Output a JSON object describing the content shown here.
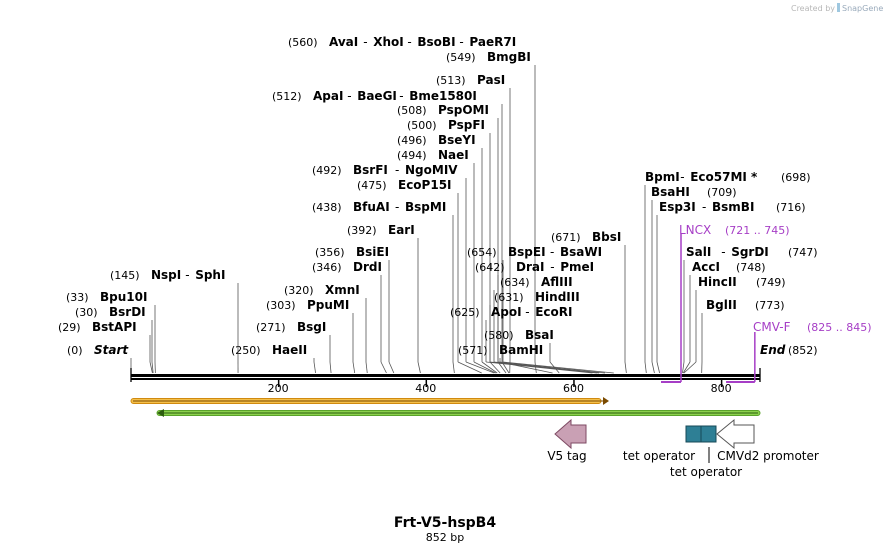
{
  "watermark": {
    "created_by": "Created by",
    "brand": "SnapGene"
  },
  "plasmid": {
    "name": "Frt-V5-hspB4",
    "length": "852 bp",
    "bp": 852
  },
  "colors": {
    "enzyme": "#000000",
    "primer": "#a63ec6",
    "v5": "#c9a0b4",
    "tet": "#2e7f95",
    "orf_yellow": "#f5c04a",
    "orf_green": "#8bd14c"
  },
  "ruler": {
    "ticks": [
      {
        "bp": 200,
        "label": "200"
      },
      {
        "bp": 400,
        "label": "400"
      },
      {
        "bp": 600,
        "label": "600"
      },
      {
        "bp": 800,
        "label": "800"
      }
    ]
  },
  "sites": [
    {
      "pos": "(560)",
      "names": [
        "AvaI",
        "XhoI",
        "BsoBI",
        "PaeR7I"
      ],
      "bp": 560,
      "lx": 543
    },
    {
      "pos": "(549)",
      "names": [
        "BmgBI"
      ],
      "bp": 549,
      "lx": 535
    },
    {
      "pos": "(513)",
      "names": [
        "PasI"
      ],
      "bp": 513,
      "lx": 510
    },
    {
      "pos": "(512)",
      "names": [
        "ApaI",
        "BaeGI",
        "Bme1580I"
      ],
      "bp": 512,
      "lx": 502
    },
    {
      "pos": "(508)",
      "names": [
        "PspOMI"
      ],
      "bp": 508,
      "lx": 498
    },
    {
      "pos": "(500)",
      "names": [
        "PspFI"
      ],
      "bp": 500,
      "lx": 490
    },
    {
      "pos": "(496)",
      "names": [
        "BseYI"
      ],
      "bp": 496,
      "lx": 482
    },
    {
      "pos": "(494)",
      "names": [
        "NaeI"
      ],
      "bp": 494,
      "lx": 474
    },
    {
      "pos": "(492)",
      "names": [
        "BsrFI",
        "NgoMIV"
      ],
      "bp": 492,
      "lx": 466
    },
    {
      "pos": "(475)",
      "names": [
        "EcoP15I"
      ],
      "bp": 475,
      "lx": 458
    },
    {
      "pos": "(438)",
      "names": [
        "BfuAI",
        "BspMI"
      ],
      "bp": 438,
      "lx": 453
    },
    {
      "pos": "(392)",
      "names": [
        "EarI"
      ],
      "bp": 392,
      "lx": 418
    },
    {
      "pos": "(356)",
      "names": [
        "BsiEI"
      ],
      "bp": 356,
      "lx": 389
    },
    {
      "pos": "(346)",
      "names": [
        "DrdI"
      ],
      "bp": 346,
      "lx": 381
    },
    {
      "pos": "(320)",
      "names": [
        "XmnI"
      ],
      "bp": 320,
      "lx": 366
    },
    {
      "pos": "(303)",
      "names": [
        "PpuMI"
      ],
      "bp": 303,
      "lx": 353
    },
    {
      "pos": "(271)",
      "names": [
        "BsgI"
      ],
      "bp": 271,
      "lx": 330
    },
    {
      "pos": "(250)",
      "names": [
        "HaeII"
      ],
      "bp": 250,
      "lx": 314
    },
    {
      "pos": "(145)",
      "names": [
        "NspI",
        "SphI"
      ],
      "bp": 145,
      "lx": 238
    },
    {
      "pos": "(33)",
      "names": [
        "Bpu10I"
      ],
      "bp": 33,
      "lx": 155
    },
    {
      "pos": "(30)",
      "names": [
        "BsrDI"
      ],
      "bp": 30,
      "lx": 152
    },
    {
      "pos": "(29)",
      "names": [
        "BstAPI"
      ],
      "bp": 29,
      "lx": 150
    },
    {
      "pos": "(0)",
      "names": [
        "Start"
      ],
      "bp": 0,
      "lx": 131,
      "italic": true
    },
    {
      "pos": "(654)",
      "names": [
        "BspEI",
        "BsaWI"
      ],
      "bp": 654,
      "lx": 503
    },
    {
      "pos": "(642)",
      "names": [
        "DraI",
        "PmeI"
      ],
      "bp": 642,
      "lx": 498
    },
    {
      "pos": "(634)",
      "names": [
        "AflIII"
      ],
      "bp": 634,
      "lx": 494
    },
    {
      "pos": "(631)",
      "names": [
        "HindIII"
      ],
      "bp": 631,
      "lx": 490
    },
    {
      "pos": "(625)",
      "names": [
        "ApoI",
        "EcoRI"
      ],
      "bp": 625,
      "lx": 486
    },
    {
      "pos": "(580)",
      "names": [
        "BsaI"
      ],
      "bp": 580,
      "lx": 550
    },
    {
      "pos": "(571)",
      "names": [
        "BamHI"
      ],
      "bp": 571,
      "lx": 500
    },
    {
      "pos": "(671)",
      "names": [
        "BbsI"
      ],
      "bp": 671,
      "lx": 625
    },
    {
      "pos": "(698)",
      "names": [
        "BpmI",
        "Eco57MI *"
      ],
      "bp": 698,
      "lx": 645
    },
    {
      "pos": "(709)",
      "names": [
        "BsaHI"
      ],
      "bp": 709,
      "lx": 652
    },
    {
      "pos": "(716)",
      "names": [
        "Esp3I",
        "BsmBI"
      ],
      "bp": 716,
      "lx": 657
    },
    {
      "pos": "(747)",
      "names": [
        "SalI",
        "SgrDI"
      ],
      "bp": 747,
      "lx": 684
    },
    {
      "pos": "(748)",
      "names": [
        "AccI"
      ],
      "bp": 748,
      "lx": 690
    },
    {
      "pos": "(749)",
      "names": [
        "HincII"
      ],
      "bp": 749,
      "lx": 696
    },
    {
      "pos": "(773)",
      "names": [
        "BglII"
      ],
      "bp": 773,
      "lx": 702
    },
    {
      "pos": "(852)",
      "names": [
        "End"
      ],
      "bp": 852,
      "lx": 760,
      "italic": true
    }
  ],
  "primers": [
    {
      "name": "LNCX",
      "range": "(721 .. 745)",
      "start": 721,
      "end": 745
    },
    {
      "name": "CMV-F",
      "range": "(825 .. 845)",
      "start": 825,
      "end": 845
    }
  ],
  "features": [
    {
      "name": "V5 tag",
      "kind": "arrow-left"
    },
    {
      "name": "tet operator",
      "kind": "box"
    },
    {
      "name": "tet operator",
      "kind": "box"
    },
    {
      "name": "CMVd2 promoter",
      "kind": "arrow-left"
    }
  ]
}
